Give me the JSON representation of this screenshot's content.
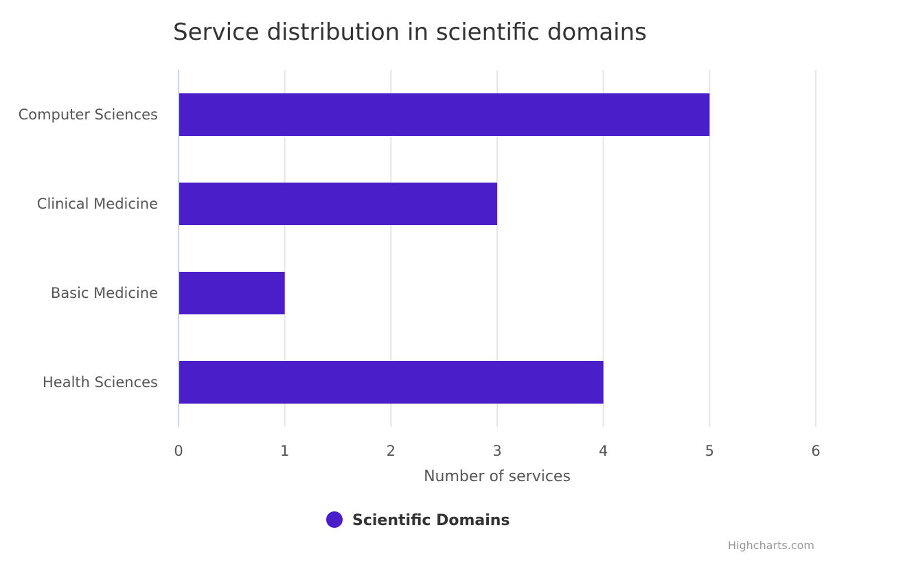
{
  "chart_data": {
    "type": "bar",
    "orientation": "horizontal",
    "title": "Service distribution in scientific domains",
    "categories": [
      "Computer Sciences",
      "Clinical Medicine",
      "Basic Medicine",
      "Health Sciences"
    ],
    "series": [
      {
        "name": "Scientific Domains",
        "values": [
          5,
          3,
          1,
          4
        ],
        "color": "#4a1fca"
      }
    ],
    "xlabel": "Number of services",
    "ylabel": "",
    "xlim": [
      0,
      6
    ],
    "xticks": [
      "0",
      "1",
      "2",
      "3",
      "4",
      "5",
      "6"
    ],
    "grid": true,
    "legend_position": "bottom-center",
    "credits": "Highcharts.com"
  },
  "colors": {
    "bar": "#4a1fca",
    "grid": "#e6e6e6",
    "axis": "#ccd6eb"
  }
}
